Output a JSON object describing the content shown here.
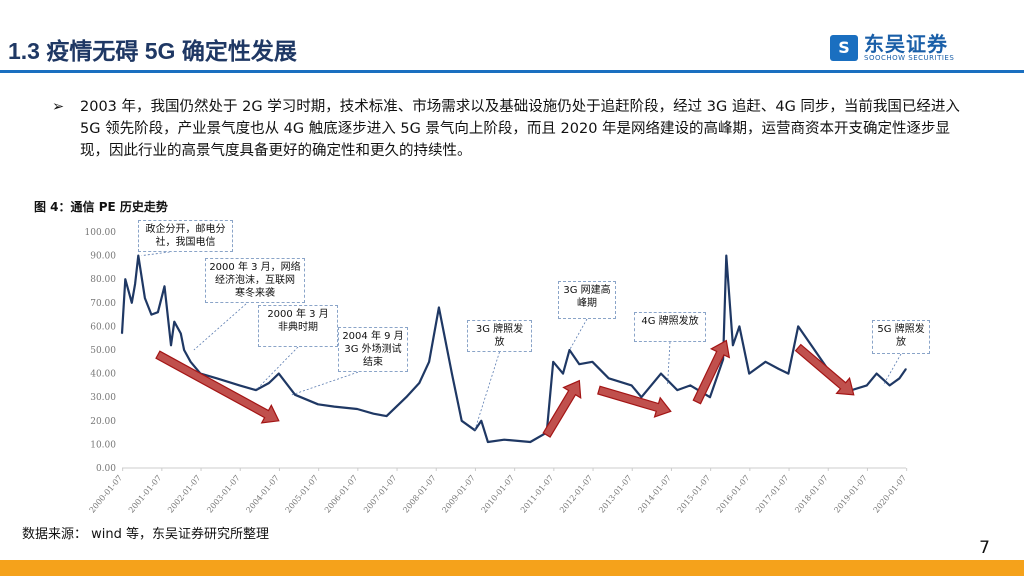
{
  "header": {
    "title": "1.3  疫情无碍 5G 确定性发展",
    "logo_cn": "东吴证券",
    "logo_en": "SOOCHOW SECURITIES",
    "brand_color": "#1a6fc0"
  },
  "bullets": [
    {
      "marker": "➢",
      "text": "2003 年，我国仍然处于 2G 学习时期，技术标准、市场需求以及基础设施仍处于追赶阶段，经过 3G 追赶、4G 同步，当前我国已经进入 5G 领先阶段，产业景气度也从 4G 触底逐步进入 5G 景气向上阶段，而且 2020 年是网络建设的高峰期，运营商资本开支确定性逐步显现，因此行业的高景气度具备更好的确定性和更久的持续性。"
    }
  ],
  "figure_title": "图 4：通信 PE 历史走势",
  "chart_data": {
    "type": "line",
    "line_color": "#1f3864",
    "ylim": [
      0,
      100
    ],
    "yticks": [
      "0.00",
      "10.00",
      "20.00",
      "30.00",
      "40.00",
      "50.00",
      "60.00",
      "70.00",
      "80.00",
      "90.00",
      "100.00"
    ],
    "xticks": [
      "2000-01-07",
      "2001-01-07",
      "2002-01-07",
      "2003-01-07",
      "2004-01-07",
      "2005-01-07",
      "2006-01-07",
      "2007-01-07",
      "2008-01-07",
      "2009-01-07",
      "2010-01-07",
      "2011-01-07",
      "2012-01-07",
      "2013-01-07",
      "2014-01-07",
      "2015-01-07",
      "2016-01-07",
      "2017-01-07",
      "2018-01-07",
      "2019-01-07",
      "2020-01-07"
    ],
    "x": [
      "2000-01",
      "2000-02",
      "2000-04",
      "2000-05",
      "2000-06",
      "2000-08",
      "2000-10",
      "2000-12",
      "2001-02",
      "2001-04",
      "2001-05",
      "2001-07",
      "2001-08",
      "2001-10",
      "2002-01",
      "2002-06",
      "2003-01",
      "2003-06",
      "2003-10",
      "2004-01",
      "2004-06",
      "2005-01",
      "2005-06",
      "2006-01",
      "2006-06",
      "2006-10",
      "2007-04",
      "2007-08",
      "2007-11",
      "2008-02",
      "2008-06",
      "2008-09",
      "2009-01",
      "2009-03",
      "2009-05",
      "2009-10",
      "2010-06",
      "2010-11",
      "2011-01",
      "2011-04",
      "2011-06",
      "2011-09",
      "2012-01",
      "2012-06",
      "2013-01",
      "2013-04",
      "2013-10",
      "2014-03",
      "2014-07",
      "2015-01",
      "2015-05",
      "2015-06",
      "2015-08",
      "2015-10",
      "2016-01",
      "2016-06",
      "2016-10",
      "2017-01",
      "2017-04",
      "2017-08",
      "2018-01",
      "2018-06",
      "2019-01",
      "2019-04",
      "2019-08",
      "2019-11",
      "2020-01"
    ],
    "y": [
      57,
      80,
      70,
      78,
      90,
      72,
      65,
      66,
      77,
      52,
      62,
      57,
      50,
      45,
      40,
      38,
      35,
      33,
      36,
      40,
      31,
      27,
      26,
      25,
      23,
      22,
      30,
      36,
      45,
      68,
      40,
      20,
      16,
      20,
      11,
      12,
      11,
      15,
      45,
      40,
      50,
      44,
      45,
      38,
      35,
      30,
      40,
      33,
      35,
      30,
      46,
      90,
      52,
      60,
      40,
      45,
      42,
      40,
      60,
      52,
      42,
      32,
      35,
      40,
      35,
      38,
      42
    ],
    "trend_arrows": [
      {
        "from": [
          "2000-12",
          48
        ],
        "to": [
          "2004-01",
          20
        ],
        "dir": "down"
      },
      {
        "from": [
          "2010-11",
          14
        ],
        "to": [
          "2011-09",
          37
        ],
        "dir": "up"
      },
      {
        "from": [
          "2012-03",
          33
        ],
        "to": [
          "2014-01",
          24
        ],
        "dir": "down"
      },
      {
        "from": [
          "2014-09",
          28
        ],
        "to": [
          "2015-06",
          54
        ],
        "dir": "up"
      },
      {
        "from": [
          "2017-04",
          51
        ],
        "to": [
          "2018-09",
          31
        ],
        "dir": "down"
      }
    ],
    "annotations": [
      {
        "text": "政企分开，邮电分社，我国电信",
        "at": [
          "2000-07",
          90
        ]
      },
      {
        "text": "2000 年 3 月，网络 经济泡沫，互联网 寒冬来袭",
        "at": [
          "2001-11",
          50
        ]
      },
      {
        "text": "2000 年 3 月 非典时期",
        "at": [
          "2003-06",
          33
        ]
      },
      {
        "text": "2004 年 9 月 3G 外场测试 结束",
        "at": [
          "2004-05",
          31
        ]
      },
      {
        "text": "3G 牌照发放",
        "at": [
          "2009-01",
          16
        ]
      },
      {
        "text": "3G 网建高峰期",
        "at": [
          "2011-06",
          50
        ]
      },
      {
        "text": "4G 牌照发放",
        "at": [
          "2013-12",
          35
        ]
      },
      {
        "text": "5G 牌照发放",
        "at": [
          "2019-06",
          35
        ]
      }
    ]
  },
  "source": "数据来源： wind 等，东吴证券研究所整理",
  "page_number": "7"
}
